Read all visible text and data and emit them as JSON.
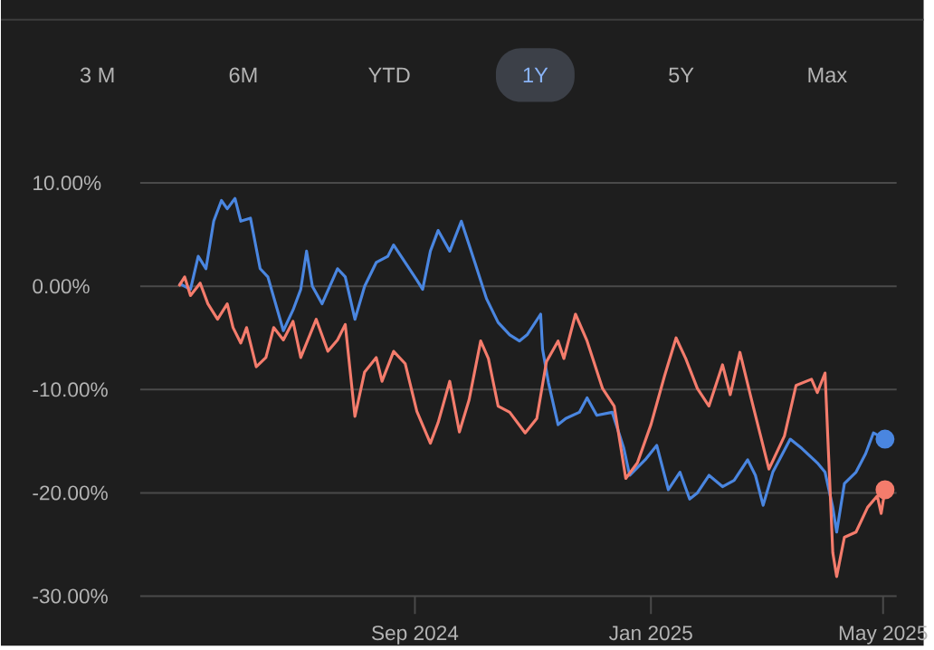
{
  "chart_data": {
    "type": "line",
    "xlim": [
      "2024-04-12",
      "2025-05-08"
    ],
    "ylim": [
      -30,
      10
    ],
    "xticks": [
      {
        "value": "2024-09-01",
        "label": "Sep 2024"
      },
      {
        "value": "2025-01-01",
        "label": "Jan 2025"
      },
      {
        "value": "2025-05-01",
        "label": "May 2025"
      }
    ],
    "yticks": [
      {
        "value": 10,
        "label": "10.00%"
      },
      {
        "value": 0,
        "label": "0.00%"
      },
      {
        "value": -10,
        "label": "-10.00%"
      },
      {
        "value": -20,
        "label": "-20.00%"
      },
      {
        "value": -30,
        "label": "-30.00%"
      }
    ],
    "grid": "y",
    "annotations": [
      "3 M",
      "6M",
      "YTD",
      "1Y",
      "5Y",
      "Max"
    ],
    "series": [
      {
        "color": "#4a86e0",
        "x": [
          "2024-05-02",
          "2024-05-08",
          "2024-05-12",
          "2024-05-16",
          "2024-05-20",
          "2024-05-24",
          "2024-05-27",
          "2024-05-31",
          "2024-06-03",
          "2024-06-08",
          "2024-06-13",
          "2024-06-17",
          "2024-06-25",
          "2024-06-30",
          "2024-07-04",
          "2024-07-07",
          "2024-07-10",
          "2024-07-15",
          "2024-07-23",
          "2024-07-27",
          "2024-08-01",
          "2024-08-06",
          "2024-08-12",
          "2024-08-18",
          "2024-08-21",
          "2024-08-27",
          "2024-09-02",
          "2024-09-05",
          "2024-09-09",
          "2024-09-13",
          "2024-09-19",
          "2024-09-25",
          "2024-10-02",
          "2024-10-08",
          "2024-10-14",
          "2024-10-20",
          "2024-10-25",
          "2024-10-29",
          "2024-11-05",
          "2024-11-06",
          "2024-11-09",
          "2024-11-14",
          "2024-11-18",
          "2024-11-25",
          "2024-11-29",
          "2024-12-04",
          "2024-12-12",
          "2024-12-18",
          "2024-12-21",
          "2024-12-29",
          "2025-01-04",
          "2025-01-10",
          "2025-01-16",
          "2025-01-21",
          "2025-01-25",
          "2025-01-31",
          "2025-02-07",
          "2025-02-13",
          "2025-02-20",
          "2025-02-24",
          "2025-02-28",
          "2025-03-05",
          "2025-03-14",
          "2025-03-20",
          "2025-03-28",
          "2025-04-01",
          "2025-04-05",
          "2025-04-07",
          "2025-04-11",
          "2025-04-17",
          "2025-04-22",
          "2025-04-26",
          "2025-05-02"
        ],
        "values": [
          0.3,
          -0.3,
          2.9,
          1.7,
          6.3,
          8.3,
          7.5,
          8.5,
          6.3,
          6.6,
          1.7,
          0.9,
          -4.3,
          -2.3,
          -0.3,
          3.4,
          0,
          -1.7,
          1.7,
          0.9,
          -3.2,
          0,
          2.3,
          2.9,
          4.0,
          2.3,
          0.6,
          -0.3,
          3.4,
          5.4,
          3.4,
          6.3,
          2.3,
          -1.2,
          -3.5,
          -4.7,
          -5.3,
          -4.7,
          -2.7,
          -6.1,
          -9.3,
          -13.4,
          -12.8,
          -12.2,
          -10.8,
          -12.5,
          -12.2,
          -15.7,
          -18.3,
          -16.8,
          -15.4,
          -19.7,
          -18.0,
          -20.6,
          -20.0,
          -18.3,
          -19.4,
          -18.8,
          -16.8,
          -18.3,
          -21.2,
          -18.0,
          -14.8,
          -15.7,
          -17.1,
          -18.0,
          -21.4,
          -23.8,
          -19.1,
          -18.0,
          -16.2,
          -14.2,
          -14.8
        ]
      },
      {
        "color": "#f47c6c",
        "x": [
          "2024-05-02",
          "2024-05-05",
          "2024-05-08",
          "2024-05-13",
          "2024-05-17",
          "2024-05-22",
          "2024-05-27",
          "2024-05-30",
          "2024-06-03",
          "2024-06-06",
          "2024-06-11",
          "2024-06-16",
          "2024-06-20",
          "2024-06-25",
          "2024-06-30",
          "2024-07-04",
          "2024-07-12",
          "2024-07-18",
          "2024-07-23",
          "2024-07-27",
          "2024-08-01",
          "2024-08-06",
          "2024-08-12",
          "2024-08-15",
          "2024-08-21",
          "2024-08-27",
          "2024-09-02",
          "2024-09-09",
          "2024-09-13",
          "2024-09-19",
          "2024-09-24",
          "2024-09-29",
          "2024-10-05",
          "2024-10-09",
          "2024-10-14",
          "2024-10-20",
          "2024-10-28",
          "2024-11-03",
          "2024-11-08",
          "2024-11-14",
          "2024-11-17",
          "2024-11-23",
          "2024-11-29",
          "2024-12-07",
          "2024-12-13",
          "2024-12-19",
          "2024-12-25",
          "2025-01-01",
          "2025-01-08",
          "2025-01-14",
          "2025-01-19",
          "2025-01-25",
          "2025-01-31",
          "2025-02-07",
          "2025-02-11",
          "2025-02-16",
          "2025-02-22",
          "2025-03-03",
          "2025-03-11",
          "2025-03-17",
          "2025-03-25",
          "2025-03-28",
          "2025-04-01",
          "2025-04-05",
          "2025-04-07",
          "2025-04-11",
          "2025-04-17",
          "2025-04-23",
          "2025-04-28",
          "2025-04-30",
          "2025-05-02"
        ],
        "values": [
          0,
          0.9,
          -0.9,
          0.3,
          -1.7,
          -3.2,
          -1.7,
          -4.0,
          -5.5,
          -4.0,
          -7.8,
          -6.9,
          -4.0,
          -5.2,
          -3.4,
          -6.9,
          -3.2,
          -6.3,
          -5.2,
          -3.7,
          -12.6,
          -8.3,
          -6.9,
          -9.2,
          -6.3,
          -7.5,
          -12.1,
          -15.2,
          -13.2,
          -9.2,
          -14.1,
          -11.0,
          -5.3,
          -7.0,
          -11.6,
          -12.2,
          -14.2,
          -12.8,
          -7.3,
          -5.3,
          -7.0,
          -2.7,
          -5.3,
          -9.9,
          -11.6,
          -18.6,
          -17.1,
          -13.4,
          -8.7,
          -5.0,
          -7.0,
          -9.9,
          -11.6,
          -7.6,
          -10.5,
          -6.4,
          -11.0,
          -17.7,
          -14.5,
          -9.6,
          -9.0,
          -10.3,
          -8.4,
          -25.8,
          -28.1,
          -24.3,
          -23.8,
          -21.4,
          -20.3,
          -22.0,
          -19.7
        ]
      },
      {
        "type": "scatter",
        "marker": "circle",
        "color": "#4a86e0",
        "x": [
          "2025-05-02"
        ],
        "values": [
          -14.8
        ]
      },
      {
        "type": "scatter",
        "marker": "circle",
        "color": "#f47c6c",
        "x": [
          "2025-05-02"
        ],
        "values": [
          -19.7
        ]
      }
    ]
  }
}
